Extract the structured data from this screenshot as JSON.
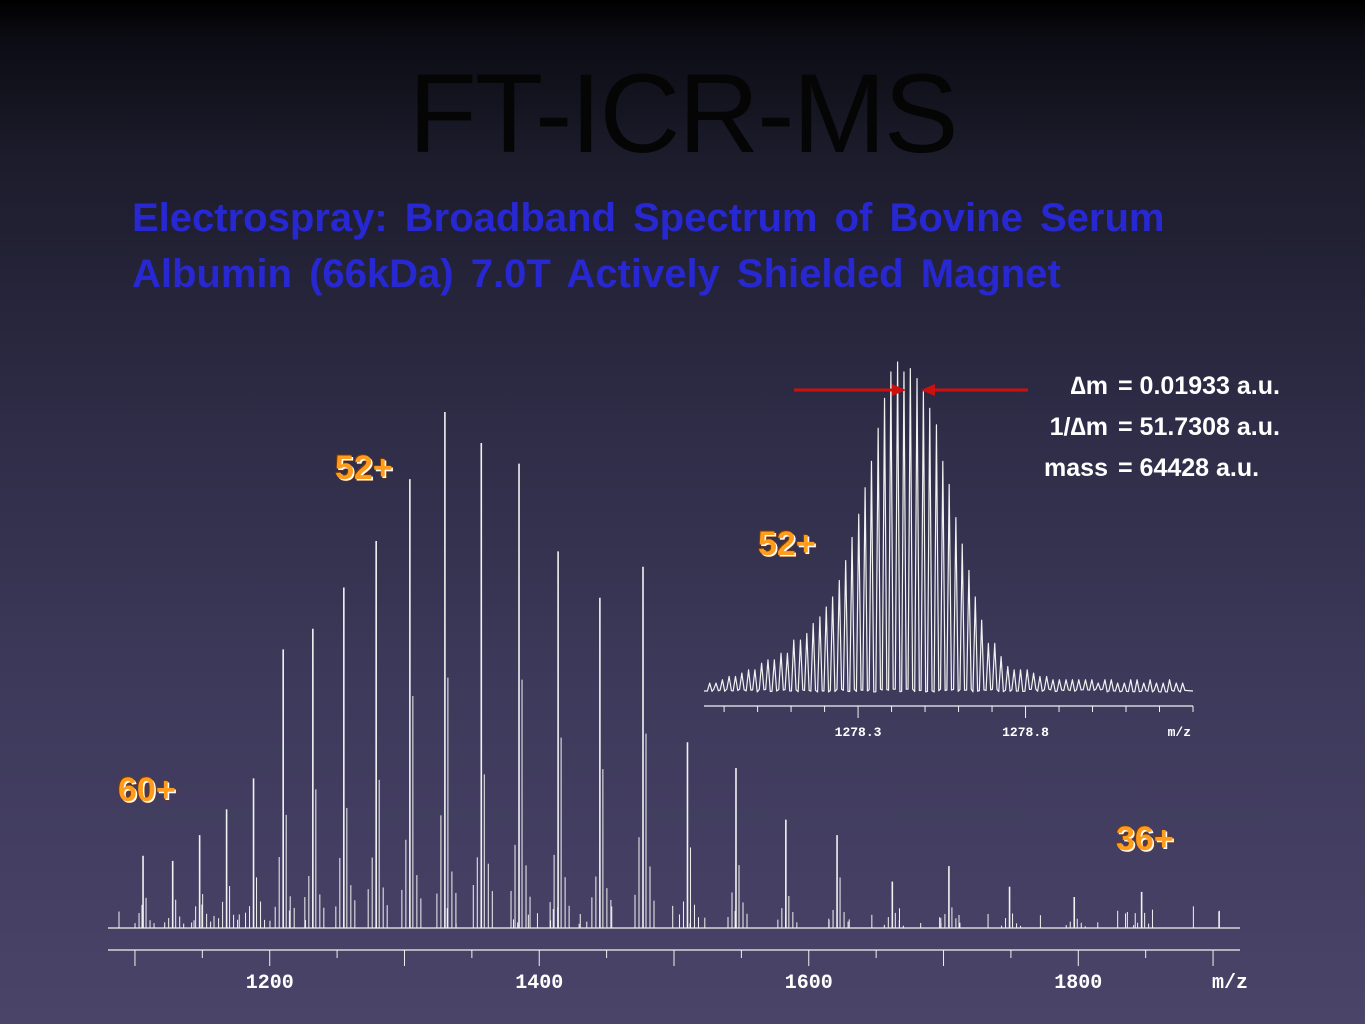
{
  "slide": {
    "title": "FT-ICR-MS",
    "subtitle_lines": [
      "Electrospray: Broadband Spectrum of Bovine Serum",
      "Albumin (66kDa) 7.0T Actively Shielded Magnet"
    ]
  },
  "readout": [
    {
      "label": "∆m",
      "value": "= 0.01933 a.u."
    },
    {
      "label": "1/∆m",
      "value": "= 51.7308 a.u."
    },
    {
      "label": "mass",
      "value": "= 64428 a.u."
    }
  ],
  "charge_labels": {
    "main_52": "52+",
    "main_60": "60+",
    "main_36": "36+",
    "inset_52": "52+"
  },
  "colors": {
    "trace": "#f2f2f2",
    "title_blue": "#2828d2",
    "charge_orange": "#ff9c1e",
    "arrow_red": "#cc1010"
  },
  "chart_data": [
    {
      "type": "line",
      "xlabel": "m/z",
      "xlim": [
        1080,
        1920
      ],
      "x_ticks": [
        1200,
        1400,
        1600,
        1800
      ],
      "ylim": [
        0,
        100
      ],
      "series": [
        {
          "x": [
            1106,
            1128,
            1148,
            1168,
            1188,
            1210,
            1232,
            1255,
            1279,
            1304,
            1330,
            1357,
            1385,
            1414,
            1445,
            1477,
            1510,
            1546,
            1583,
            1621,
            1662,
            1704,
            1749,
            1797,
            1847
          ],
          "values": [
            14,
            13,
            18,
            23,
            29,
            54,
            58,
            66,
            75,
            87,
            100,
            94,
            90,
            73,
            64,
            70,
            36,
            31,
            21,
            18,
            9,
            12,
            8,
            6,
            7
          ]
        }
      ]
    },
    {
      "type": "line",
      "xlabel": "m/z",
      "xlim": [
        1277.84,
        1279.3
      ],
      "x_ticks": [
        1278.3,
        1278.8
      ],
      "ylim": [
        0,
        100
      ],
      "series": [
        {
          "x": [
            1277.857,
            1277.876,
            1277.895,
            1277.915,
            1277.934,
            1277.953,
            1277.973,
            1277.992,
            1278.012,
            1278.031,
            1278.05,
            1278.07,
            1278.089,
            1278.108,
            1278.128,
            1278.147,
            1278.166,
            1278.186,
            1278.205,
            1278.224,
            1278.244,
            1278.263,
            1278.282,
            1278.302,
            1278.321,
            1278.34,
            1278.36,
            1278.379,
            1278.398,
            1278.418,
            1278.437,
            1278.456,
            1278.476,
            1278.495,
            1278.514,
            1278.534,
            1278.553,
            1278.572,
            1278.592,
            1278.611,
            1278.631,
            1278.65,
            1278.669,
            1278.689,
            1278.708,
            1278.727,
            1278.747,
            1278.766,
            1278.785,
            1278.805,
            1278.824,
            1278.843,
            1278.863,
            1278.882,
            1278.901,
            1278.921,
            1278.94,
            1278.959,
            1278.979,
            1278.998,
            1279.017,
            1279.037,
            1279.056,
            1279.075,
            1279.095,
            1279.114,
            1279.133,
            1279.153,
            1279.172,
            1279.191,
            1279.211,
            1279.23,
            1279.25,
            1279.269
          ],
          "values": [
            3,
            3,
            4,
            5,
            5,
            6,
            7,
            7,
            9,
            10,
            10,
            12,
            12,
            16,
            16,
            18,
            21,
            23,
            26,
            29,
            34,
            40,
            47,
            54,
            62,
            70,
            80,
            89,
            97,
            100,
            97,
            98,
            95,
            91,
            86,
            81,
            70,
            63,
            53,
            45,
            37,
            29,
            22,
            15,
            15,
            11,
            8,
            7,
            7,
            7,
            6,
            5,
            5,
            4,
            4,
            4,
            4,
            4,
            4,
            4,
            3,
            4,
            4,
            3,
            3,
            4,
            4,
            3,
            4,
            3,
            3,
            4,
            3,
            3
          ]
        }
      ]
    }
  ]
}
